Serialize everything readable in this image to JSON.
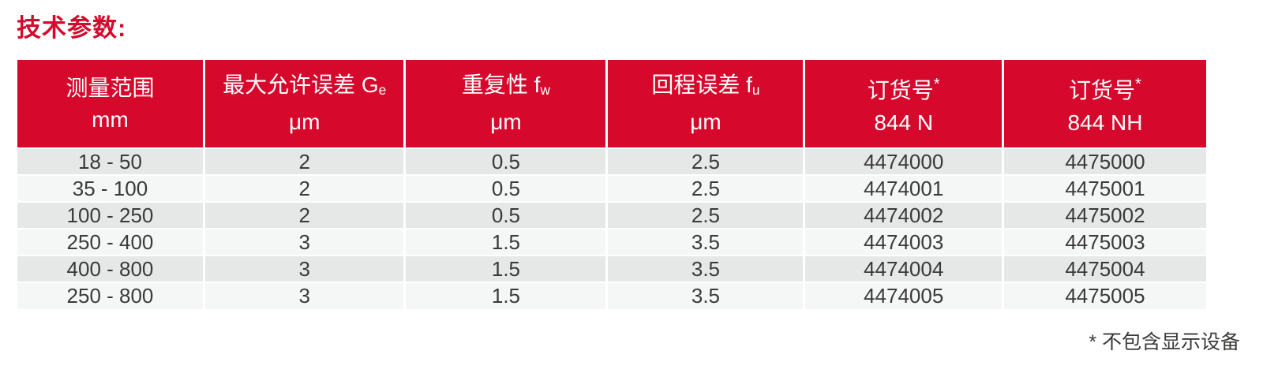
{
  "page": {
    "title": "技术参数:",
    "footnote": "* 不包含显示设备",
    "colors": {
      "brand_red": "#d6082c",
      "row_alt_gray": "#e6e7e7",
      "row_alt_light": "#f5f6f6",
      "body_text": "#3a3a39"
    }
  },
  "table": {
    "columns": [
      {
        "title": "测量范围",
        "sub": "",
        "sup": "",
        "unit": "mm"
      },
      {
        "title": "最大允许误差 G",
        "sub": "e",
        "sup": "",
        "unit": "μm"
      },
      {
        "title": "重复性 f",
        "sub": "w",
        "sup": "",
        "unit": "μm"
      },
      {
        "title": "回程误差 f",
        "sub": "u",
        "sup": "",
        "unit": "μm"
      },
      {
        "title": "订货号",
        "sub": "",
        "sup": "*",
        "unit": "844 N"
      },
      {
        "title": "订货号",
        "sub": "",
        "sup": "*",
        "unit": "844 NH"
      }
    ],
    "rows": [
      [
        "18 - 50",
        "2",
        "0.5",
        "2.5",
        "4474000",
        "4475000"
      ],
      [
        "35 - 100",
        "2",
        "0.5",
        "2.5",
        "4474001",
        "4475001"
      ],
      [
        "100 - 250",
        "2",
        "0.5",
        "2.5",
        "4474002",
        "4475002"
      ],
      [
        "250 - 400",
        "3",
        "1.5",
        "3.5",
        "4474003",
        "4475003"
      ],
      [
        "400 - 800",
        "3",
        "1.5",
        "3.5",
        "4474004",
        "4475004"
      ],
      [
        "250 - 800",
        "3",
        "1.5",
        "3.5",
        "4474005",
        "4475005"
      ]
    ]
  }
}
